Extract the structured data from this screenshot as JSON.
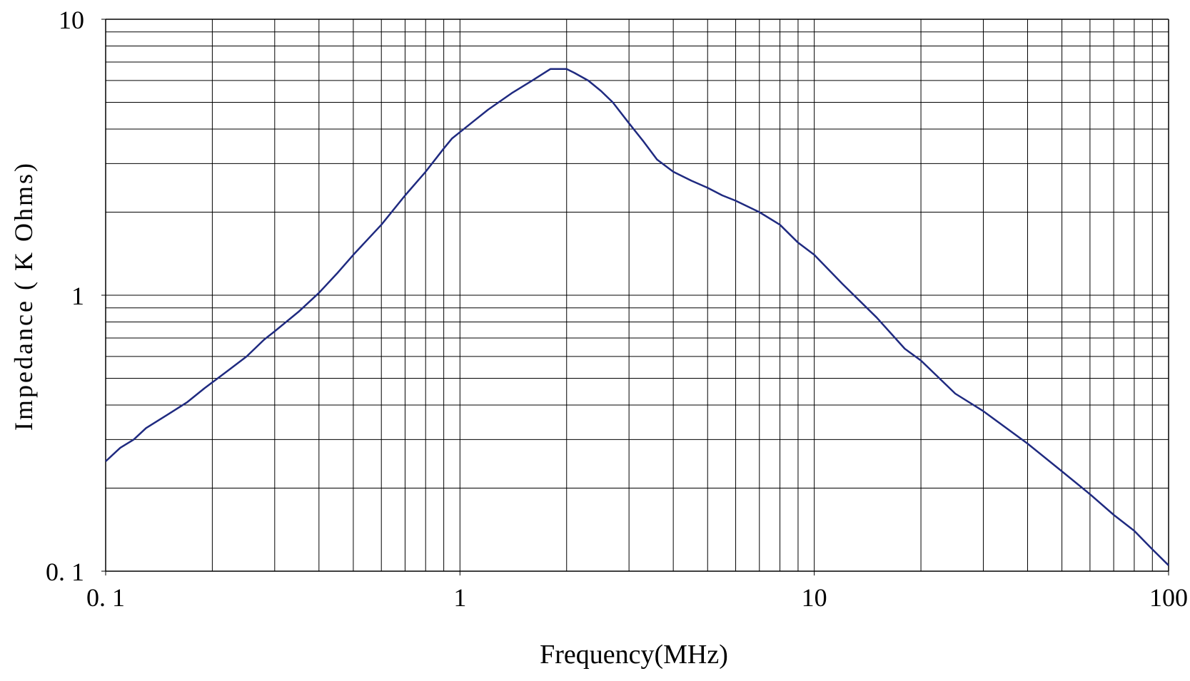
{
  "chart_data": {
    "type": "line",
    "title": "",
    "xlabel": "Frequency(MHz)",
    "ylabel": "Impedance ( K Ohms)",
    "x_scale": "log",
    "y_scale": "log",
    "xlim": [
      0.1,
      100
    ],
    "ylim": [
      0.1,
      10
    ],
    "grid": true,
    "x_ticks": [
      {
        "value": 0.1,
        "label": "0. 1"
      },
      {
        "value": 1,
        "label": "1"
      },
      {
        "value": 10,
        "label": "10"
      },
      {
        "value": 100,
        "label": "100"
      }
    ],
    "y_ticks": [
      {
        "value": 0.1,
        "label": "0. 1"
      },
      {
        "value": 1,
        "label": "1"
      },
      {
        "value": 10,
        "label": "10"
      }
    ],
    "line_color": "#1f2a80",
    "series": [
      {
        "x": [
          0.1,
          0.11,
          0.12,
          0.13,
          0.15,
          0.17,
          0.19,
          0.22,
          0.25,
          0.28,
          0.3,
          0.35,
          0.4,
          0.45,
          0.5,
          0.6,
          0.7,
          0.8,
          0.9,
          0.95,
          1.0,
          1.1,
          1.2,
          1.4,
          1.6,
          1.8,
          2.0,
          2.1,
          2.3,
          2.5,
          2.7,
          3.0,
          3.3,
          3.6,
          4.0,
          4.5,
          5.0,
          5.5,
          6.0,
          7.0,
          8.0,
          9.0,
          10,
          12,
          15,
          18,
          20,
          25,
          30,
          40,
          50,
          60,
          70,
          80,
          90,
          100
        ],
        "y": [
          0.25,
          0.28,
          0.3,
          0.33,
          0.37,
          0.41,
          0.46,
          0.53,
          0.6,
          0.69,
          0.74,
          0.87,
          1.02,
          1.2,
          1.4,
          1.8,
          2.3,
          2.8,
          3.4,
          3.7,
          3.9,
          4.3,
          4.7,
          5.4,
          6.0,
          6.6,
          6.6,
          6.4,
          6.0,
          5.5,
          5.0,
          4.2,
          3.6,
          3.1,
          2.8,
          2.6,
          2.45,
          2.3,
          2.2,
          2.0,
          1.8,
          1.55,
          1.4,
          1.1,
          0.83,
          0.64,
          0.58,
          0.44,
          0.38,
          0.29,
          0.23,
          0.19,
          0.16,
          0.14,
          0.12,
          0.105
        ]
      }
    ]
  }
}
